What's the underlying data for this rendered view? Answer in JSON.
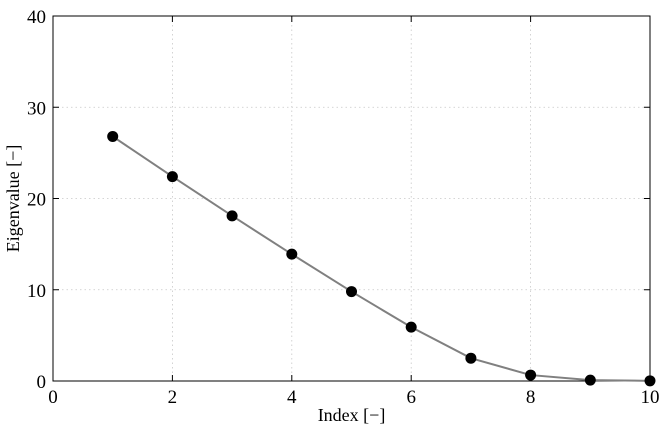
{
  "chart_data": {
    "type": "line",
    "title": "",
    "xlabel": "Index [−]",
    "ylabel": "Eigenvalue [−]",
    "xlim": [
      0,
      10
    ],
    "ylim": [
      0,
      40
    ],
    "xticks": [
      "0",
      "2",
      "4",
      "6",
      "8",
      "10"
    ],
    "yticks": [
      "0",
      "10",
      "20",
      "30",
      "40"
    ],
    "grid": true,
    "colors": {
      "line": "#808080",
      "marker": "#000000",
      "grid": "#c8c8c8"
    },
    "series": [
      {
        "x": [
          1,
          2,
          3,
          4,
          5,
          6,
          7,
          8,
          9,
          10
        ],
        "values": [
          26.8,
          22.4,
          18.1,
          13.9,
          9.8,
          5.9,
          2.5,
          0.65,
          0.1,
          0.02
        ]
      }
    ]
  }
}
